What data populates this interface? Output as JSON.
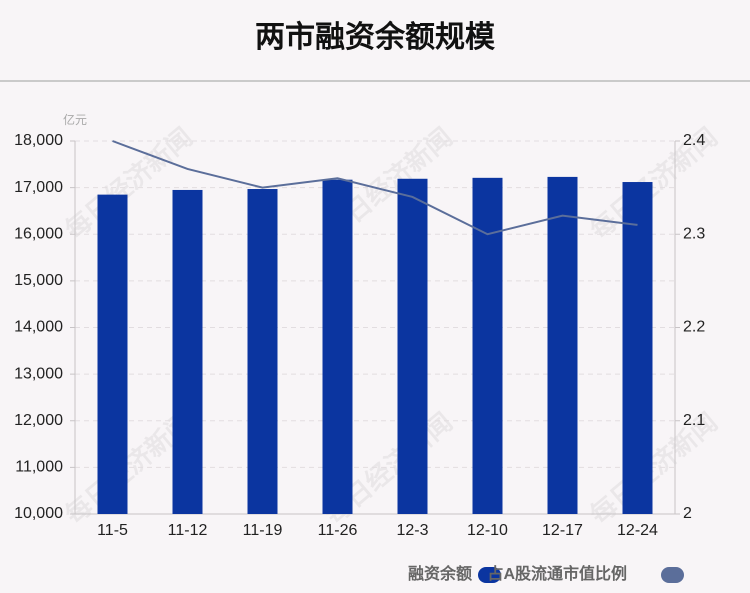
{
  "chart_data": {
    "type": "bar",
    "title": "两市融资余额规模",
    "y_unit": "亿元",
    "watermark": "每日经济新闻",
    "categories": [
      "11-5",
      "11-12",
      "11-19",
      "11-26",
      "12-3",
      "12-10",
      "12-17",
      "12-24"
    ],
    "series": [
      {
        "name": "融资余额",
        "type": "bar",
        "color": "#0b35a0",
        "values": [
          16850,
          16950,
          16970,
          17170,
          17190,
          17210,
          17230,
          17120
        ]
      },
      {
        "name": "占A股流通市值比例",
        "type": "line",
        "axis": "y2",
        "color": "#5b6e9a",
        "values": [
          2.4,
          2.37,
          2.35,
          2.36,
          2.34,
          2.3,
          2.32,
          2.31
        ]
      }
    ],
    "ylim": [
      10000,
      18000
    ],
    "yticks": [
      {
        "value": 10000,
        "label": "10,000"
      },
      {
        "value": 11000,
        "label": "11,000"
      },
      {
        "value": 12000,
        "label": "12,000"
      },
      {
        "value": 13000,
        "label": "13,000"
      },
      {
        "value": 14000,
        "label": "14,000"
      },
      {
        "value": 15000,
        "label": "15,000"
      },
      {
        "value": 16000,
        "label": "16,000"
      },
      {
        "value": 17000,
        "label": "17,000"
      },
      {
        "value": 18000,
        "label": "18,000"
      }
    ],
    "y2lim": [
      2,
      2.4
    ],
    "y2ticks": [
      2,
      2.1,
      2.2,
      2.3,
      2.4
    ],
    "grid": true,
    "legend": "bottom-right"
  }
}
